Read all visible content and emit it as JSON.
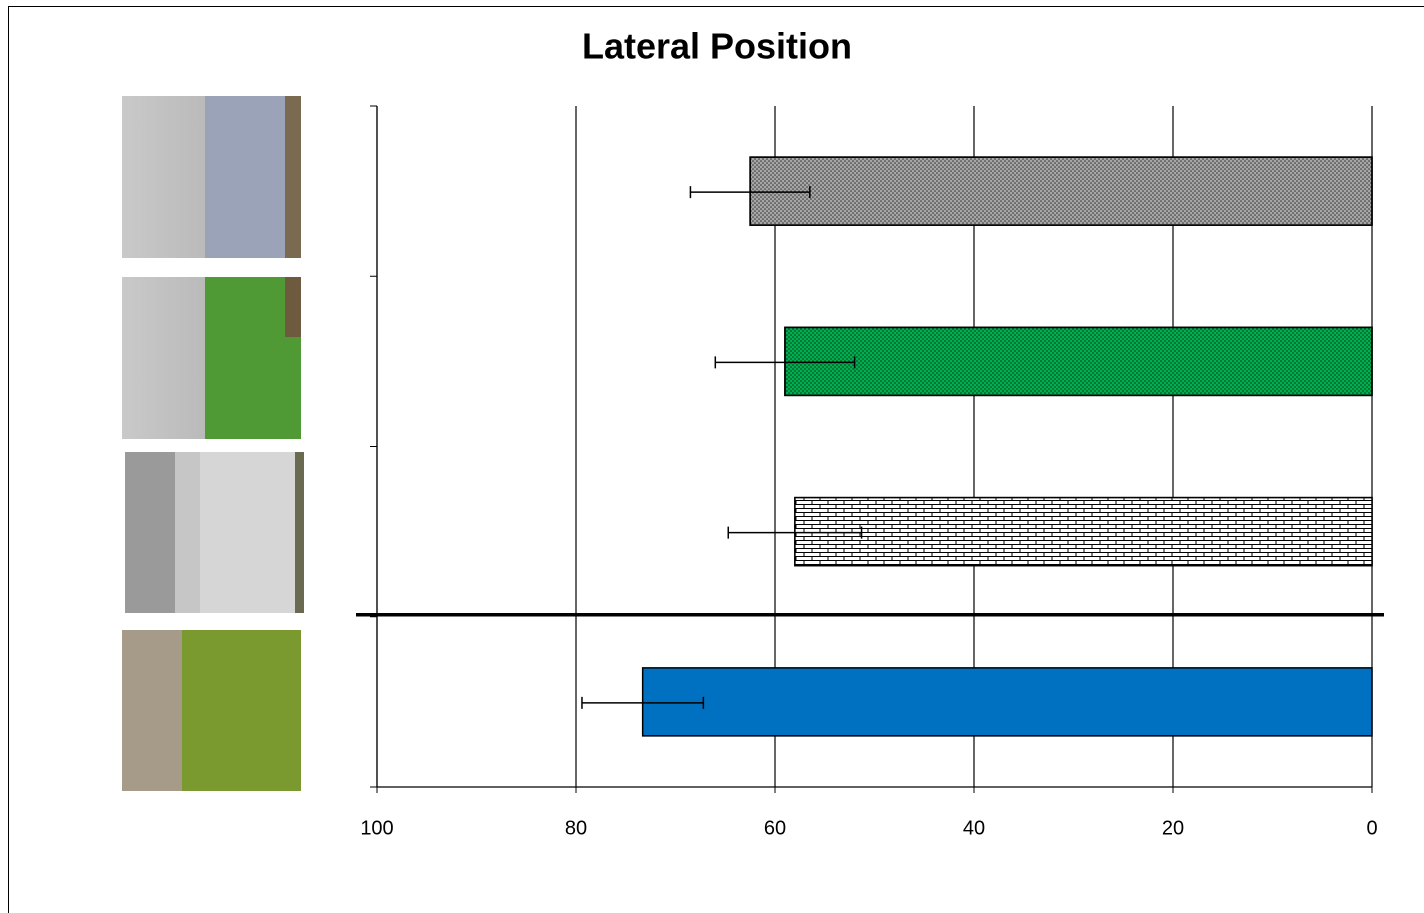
{
  "chart_data": {
    "type": "bar",
    "orientation": "horizontal",
    "title": "Lateral Position",
    "categories": [
      null,
      null,
      null,
      null
    ],
    "values": [
      62.5,
      59,
      58,
      73.3
    ],
    "errors": [
      6,
      7,
      6.7,
      6.1
    ],
    "colors": [
      "#a6a6a6",
      "#00b050",
      "#ffffff",
      "#0070c0"
    ],
    "patterns": [
      "dots",
      "dots",
      "bricks",
      "solid"
    ],
    "xlim": [
      100,
      0
    ],
    "xticks": [
      100,
      80,
      60,
      40,
      20,
      0
    ],
    "grid": true
  }
}
